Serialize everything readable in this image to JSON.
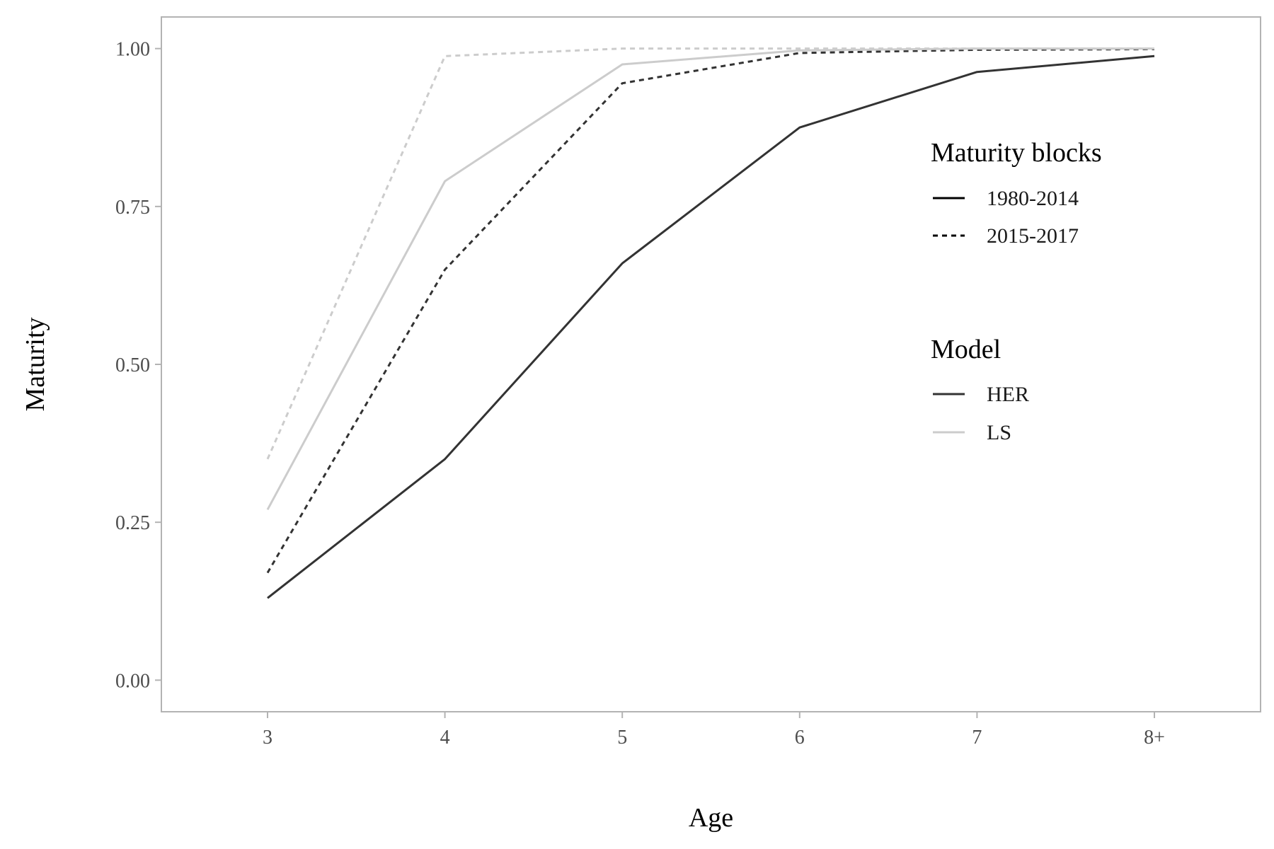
{
  "chart_data": {
    "type": "line",
    "xlabel": "Age",
    "ylabel": "Maturity",
    "categories": [
      "3",
      "4",
      "5",
      "6",
      "7",
      "8+"
    ],
    "ylim": [
      -0.05,
      1.05
    ],
    "yticks": [
      0.0,
      0.25,
      0.5,
      0.75,
      1.0
    ],
    "ytick_labels": [
      "0.00",
      "0.25",
      "0.50",
      "0.75",
      "1.00"
    ],
    "grid": false,
    "legend_position": "right, inside",
    "legends": [
      {
        "title": "Maturity blocks",
        "entries": [
          {
            "label": "1980-2014",
            "linetype": "solid",
            "color": "#000000"
          },
          {
            "label": "2015-2017",
            "linetype": "dashed",
            "color": "#000000"
          }
        ]
      },
      {
        "title": "Model",
        "entries": [
          {
            "label": "HER",
            "linetype": "solid",
            "color": "#333333"
          },
          {
            "label": "LS",
            "linetype": "solid",
            "color": "#cccccc"
          }
        ]
      }
    ],
    "series": [
      {
        "model": "HER",
        "block": "1980-2014",
        "color": "#333333",
        "linetype": "solid",
        "values": [
          0.13,
          0.35,
          0.66,
          0.875,
          0.963,
          0.988
        ]
      },
      {
        "model": "HER",
        "block": "2015-2017",
        "color": "#333333",
        "linetype": "dashed",
        "values": [
          0.17,
          0.65,
          0.945,
          0.993,
          0.998,
          0.999
        ]
      },
      {
        "model": "LS",
        "block": "1980-2014",
        "color": "#cccccc",
        "linetype": "solid",
        "values": [
          0.27,
          0.79,
          0.975,
          0.997,
          1.0,
          1.0
        ]
      },
      {
        "model": "LS",
        "block": "2015-2017",
        "color": "#cccccc",
        "linetype": "dashed",
        "values": [
          0.35,
          0.988,
          1.0,
          1.0,
          1.0,
          1.0
        ]
      }
    ]
  }
}
